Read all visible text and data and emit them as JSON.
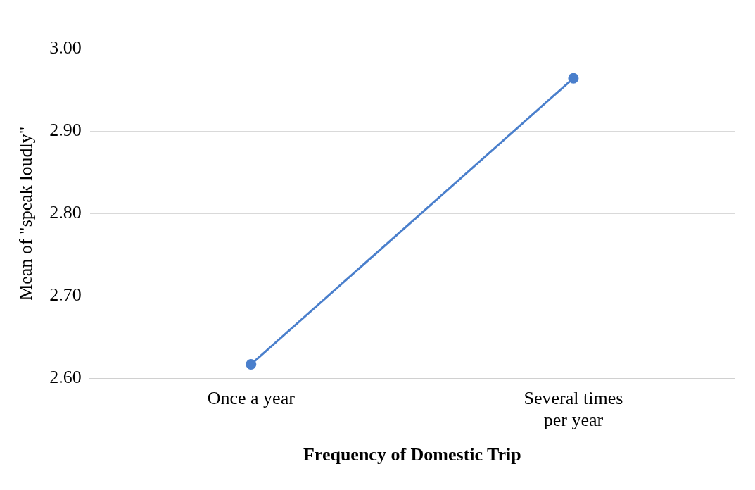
{
  "chart_data": {
    "type": "line",
    "xlabel": "Frequency of Domestic Trip",
    "ylabel": "Mean of \"speak loudly\"",
    "categories": [
      "Once a year",
      "Several times per year"
    ],
    "series": [
      {
        "color": "#4a7fcc",
        "values": [
          2.617,
          2.964
        ]
      }
    ],
    "ylim": [
      2.6,
      3.0
    ],
    "yticks": [
      {
        "value": 2.6,
        "label": "2.60"
      },
      {
        "value": 2.7,
        "label": "2.70"
      },
      {
        "value": 2.8,
        "label": "2.80"
      },
      {
        "value": 2.9,
        "label": "2.90"
      },
      {
        "value": 3.0,
        "label": "3.00"
      }
    ],
    "grid": "y",
    "marker": "circle",
    "legend": false
  }
}
